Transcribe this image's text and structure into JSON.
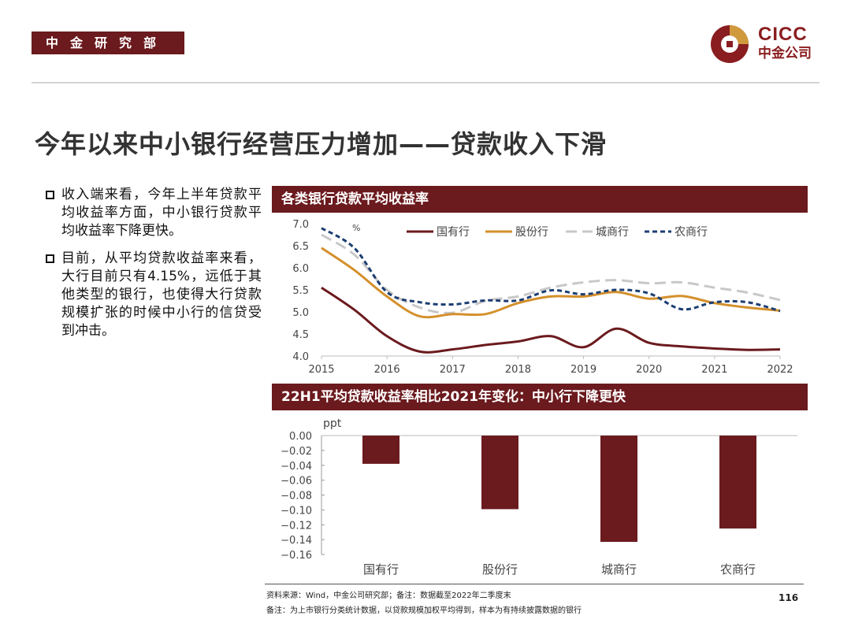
{
  "header": {
    "dept_label": "中金研究部",
    "logo_en": "CICC",
    "logo_cn": "中金公司"
  },
  "title": "今年以来中小银行经营压力增加——贷款收入下滑",
  "bullets": [
    "收入端来看，今年上半年贷款平均收益率方面，中小银行贷款平均收益率下降更快。",
    "目前，从平均贷款收益率来看，大行目前只有4.15%，远低于其他类型的银行，也使得大行贷款规模扩张的时候中小行的信贷受到冲击。"
  ],
  "chart_data": [
    {
      "type": "line",
      "title": "各类银行贷款平均收益率",
      "ylabel": "%",
      "ylim": [
        4.0,
        7.0
      ],
      "yticks": [
        "7.0",
        "6.5",
        "6.0",
        "5.5",
        "5.0",
        "4.5",
        "4.0"
      ],
      "xticks": [
        "2015",
        "2016",
        "2017",
        "2018",
        "2019",
        "2020",
        "2021",
        "2022"
      ],
      "xlim": [
        2015,
        2022
      ],
      "series": [
        {
          "name": "国有行",
          "color": "#6b1a1e",
          "dash": "",
          "x": [
            2015.0,
            2015.5,
            2016.0,
            2016.5,
            2017.0,
            2017.5,
            2018.0,
            2018.5,
            2019.0,
            2019.5,
            2020.0,
            2020.5,
            2021.0,
            2021.5,
            2022.0
          ],
          "y": [
            5.55,
            5.05,
            4.45,
            4.1,
            4.15,
            4.25,
            4.33,
            4.45,
            4.2,
            4.62,
            4.3,
            4.22,
            4.17,
            4.14,
            4.15
          ]
        },
        {
          "name": "股份行",
          "color": "#d4902b",
          "dash": "",
          "x": [
            2015.0,
            2015.5,
            2016.0,
            2016.5,
            2017.0,
            2017.5,
            2018.0,
            2018.5,
            2019.0,
            2019.5,
            2020.0,
            2020.5,
            2021.0,
            2021.5,
            2022.0
          ],
          "y": [
            6.45,
            5.95,
            5.35,
            4.9,
            4.95,
            4.95,
            5.2,
            5.35,
            5.35,
            5.45,
            5.3,
            5.36,
            5.2,
            5.1,
            5.03
          ]
        },
        {
          "name": "城商行",
          "color": "#c8c8c8",
          "dash": "14,7",
          "x": [
            2015.0,
            2015.5,
            2016.0,
            2016.5,
            2017.0,
            2017.5,
            2018.0,
            2018.5,
            2019.0,
            2019.5,
            2020.0,
            2020.5,
            2021.0,
            2021.5,
            2022.0
          ],
          "y": [
            6.75,
            6.3,
            5.5,
            5.1,
            4.98,
            5.25,
            5.35,
            5.55,
            5.67,
            5.72,
            5.65,
            5.67,
            5.55,
            5.44,
            5.27
          ]
        },
        {
          "name": "农商行",
          "color": "#1c3e72",
          "dash": "6,4",
          "x": [
            2015.0,
            2015.5,
            2016.0,
            2016.5,
            2017.0,
            2017.5,
            2018.0,
            2018.5,
            2019.0,
            2019.5,
            2020.0,
            2020.5,
            2021.0,
            2021.5,
            2022.0
          ],
          "y": [
            6.9,
            6.45,
            5.45,
            5.22,
            5.17,
            5.26,
            5.26,
            5.49,
            5.4,
            5.5,
            5.42,
            5.06,
            5.22,
            5.22,
            5.02
          ]
        }
      ]
    },
    {
      "type": "bar",
      "title": "22H1平均贷款收益率相比2021年变化：中小行下降更快",
      "ylabel": "ppt",
      "ylim": [
        -0.16,
        0.0
      ],
      "yticks": [
        "0.00",
        "−0.02",
        "−0.04",
        "−0.06",
        "−0.08",
        "−0.10",
        "−0.12",
        "−0.14",
        "−0.16"
      ],
      "categories": [
        "国有行",
        "股份行",
        "城商行",
        "农商行"
      ],
      "values": [
        -0.038,
        -0.099,
        -0.143,
        -0.125
      ],
      "color": "#6b1a1e"
    }
  ],
  "footer": {
    "source": "资料来源：Wind，中金公司研究部；备注：数据截至2022年二季度末",
    "note": "备注：为上市银行分类统计数据，以贷款规模加权平均得到，样本为有持续披露数据的银行",
    "page": "116"
  }
}
